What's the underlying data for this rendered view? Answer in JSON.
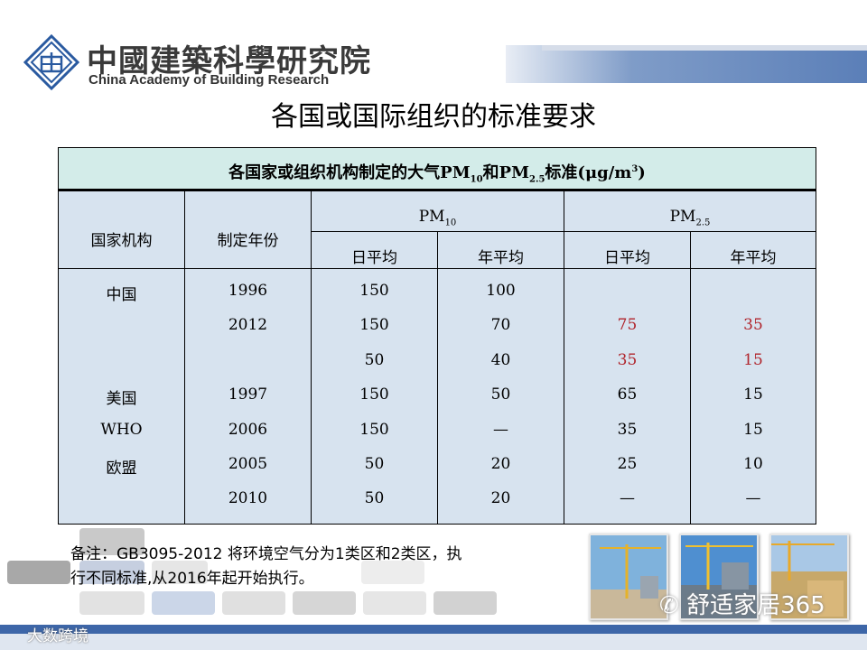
{
  "header": {
    "org_name_cn": "中國建築科學研究院",
    "org_name_en": "China Academy of Building Research",
    "logo_icon": "cabr-logo-icon"
  },
  "page_title": "各国或国际组织的标准要求",
  "table": {
    "caption": {
      "prefix": "各国家或组织机构制定的大气PM",
      "sub1": "10",
      "mid": "和PM",
      "sub2": "2.5",
      "suffix_open": "标准(μg/m",
      "sup": "3",
      "suffix_close": ")"
    },
    "headers": {
      "org": "国家机构",
      "year": "制定年份",
      "pm10_base": "PM",
      "pm10_sub": "10",
      "pm25_base": "PM",
      "pm25_sub": "2.5",
      "daily": "日平均",
      "annual": "年平均"
    },
    "rows": [
      {
        "org": "中国",
        "year": "1996",
        "pm10_daily": "150",
        "pm10_annual": "100",
        "pm25_daily": "",
        "pm25_annual": ""
      },
      {
        "org": "",
        "year": "2012",
        "pm10_daily": "150",
        "pm10_annual": "70",
        "pm25_daily": "75",
        "pm25_annual": "35"
      },
      {
        "org": "",
        "year": "",
        "pm10_daily": "50",
        "pm10_annual": "40",
        "pm25_daily": "35",
        "pm25_annual": "15"
      },
      {
        "org": "美国",
        "year": "1997",
        "pm10_daily": "150",
        "pm10_annual": "50",
        "pm25_daily": "65",
        "pm25_annual": "15"
      },
      {
        "org": "WHO",
        "year": "2006",
        "pm10_daily": "150",
        "pm10_annual": "—",
        "pm25_daily": "35",
        "pm25_annual": "15"
      },
      {
        "org": "欧盟",
        "year": "2005",
        "pm10_daily": "50",
        "pm10_annual": "20",
        "pm25_daily": "25",
        "pm25_annual": "10"
      },
      {
        "org": "",
        "year": "2010",
        "pm10_daily": "50",
        "pm10_annual": "20",
        "pm25_daily": "—",
        "pm25_annual": "—"
      }
    ],
    "highlight_color": "#b0252c"
  },
  "note": {
    "line1": "备注：GB3095-2012 将环境空气分为1类区和2类区，执",
    "line2": "行不同标准,从2016年起开始执行。"
  },
  "watermarks": {
    "wechat": "舒适家居365",
    "bottom_left": "大数跨境"
  },
  "photos": [
    "construction-crane-photo",
    "construction-crane-photo",
    "construction-crane-photo"
  ],
  "colors": {
    "brand_blue": "#3d66a8",
    "caption_bg": "#d3ece9",
    "table_bg": "#d7e3ef"
  }
}
